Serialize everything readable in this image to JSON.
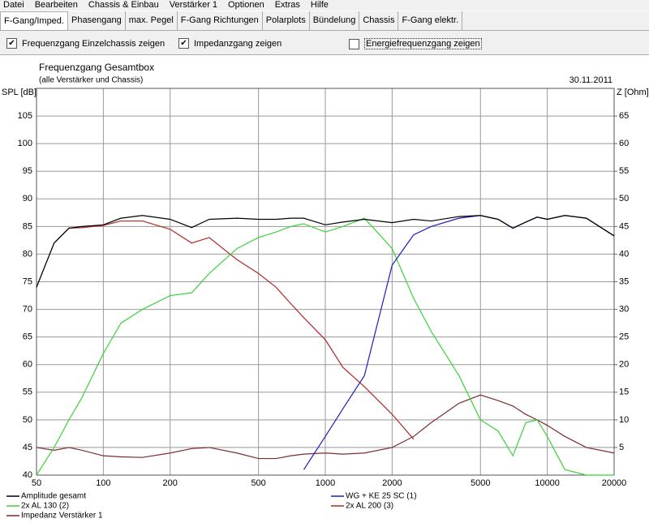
{
  "menu": [
    "Datei",
    "Bearbeiten",
    "Chassis & Einbau",
    "Verstärker 1",
    "Optionen",
    "Extras",
    "Hilfe"
  ],
  "tabs": [
    {
      "label": "F-Gang/Imped.",
      "active": true
    },
    {
      "label": "Phasengang",
      "active": false
    },
    {
      "label": "max. Pegel",
      "active": false
    },
    {
      "label": "F-Gang Richtungen",
      "active": false
    },
    {
      "label": "Polarplots",
      "active": false
    },
    {
      "label": "Bündelung",
      "active": false
    },
    {
      "label": "Chassis",
      "active": false
    },
    {
      "label": "F-Gang elektr.",
      "active": false
    }
  ],
  "options": [
    {
      "label": "Frequenzgang Einzelchassis zeigen",
      "checked": true
    },
    {
      "label": "Impedanzgang zeigen",
      "checked": true
    },
    {
      "label": "Energiefrequenzgang zeigen",
      "checked": false
    }
  ],
  "chart_data": {
    "type": "line",
    "title": "Frequenzgang Gesamtbox",
    "subtitle": "(alle Verstärker und Chassis)",
    "date": "30.11.2011",
    "ylabel": "SPL [dB]",
    "y2label": "Z [Ohm]",
    "xscale": "log",
    "grid": true,
    "xlim": [
      50,
      20000
    ],
    "xticks": [
      50,
      100,
      200,
      500,
      1000,
      2000,
      5000,
      10000,
      20000
    ],
    "ylim": [
      40,
      110
    ],
    "yticks": [
      40,
      45,
      50,
      55,
      60,
      65,
      70,
      75,
      80,
      85,
      90,
      95,
      100,
      105
    ],
    "y2lim": [
      0,
      70
    ],
    "y2ticks": [
      5,
      10,
      15,
      20,
      25,
      30,
      35,
      40,
      45,
      50,
      55,
      60,
      65
    ],
    "x": [
      50,
      60,
      70,
      80,
      100,
      120,
      150,
      200,
      250,
      300,
      400,
      500,
      600,
      700,
      800,
      1000,
      1200,
      1500,
      2000,
      2500,
      3000,
      4000,
      5000,
      6000,
      7000,
      8000,
      9000,
      10000,
      12000,
      15000,
      20000
    ],
    "series": [
      {
        "name": "Amplitude gesamt",
        "color": "#000000",
        "values": [
          74,
          82,
          84.7,
          85,
          85.3,
          86.5,
          87,
          86.3,
          84.8,
          86.3,
          86.5,
          86.3,
          86.3,
          86.5,
          86.5,
          85.3,
          85.8,
          86.3,
          85.7,
          86.3,
          86,
          86.8,
          87,
          86.3,
          84.7,
          85.8,
          86.7,
          86.3,
          87,
          86.5,
          83.3
        ]
      },
      {
        "name": "WG + KE 25 SC (1)",
        "color": "#1e1ebe",
        "values": [
          null,
          null,
          null,
          null,
          null,
          null,
          null,
          null,
          null,
          null,
          null,
          null,
          null,
          null,
          41,
          47,
          52,
          58,
          78,
          83.5,
          85,
          86.5,
          87,
          86.3,
          84.7,
          85.8,
          86.7,
          86.3,
          87,
          86.5,
          83.3
        ]
      },
      {
        "name": "2x AL 130 (2)",
        "color": "#3cd23c",
        "values": [
          40,
          45,
          50,
          54,
          62,
          67.5,
          70,
          72.5,
          73,
          76.5,
          81,
          83,
          84,
          85,
          85.5,
          84,
          85,
          86.5,
          81,
          72,
          66,
          58,
          50,
          48,
          43.5,
          49.5,
          50,
          47,
          41,
          40,
          40
        ]
      },
      {
        "name": "2x AL 200 (3)",
        "color": "#b02828",
        "values": [
          74,
          82,
          84.7,
          84.8,
          85.2,
          86,
          86,
          84.5,
          82,
          83,
          79,
          76.5,
          74,
          71,
          68.5,
          64.5,
          59.5,
          56,
          51,
          46.5,
          null,
          null,
          null,
          null,
          null,
          null,
          null,
          null,
          null,
          null,
          null
        ]
      },
      {
        "name": "Impedanz Verstärker 1",
        "color": "#7b2d2d",
        "axis": "y2",
        "values": [
          5,
          4.5,
          5,
          4.5,
          3.5,
          3.3,
          3.2,
          4,
          4.8,
          5,
          4,
          3,
          3,
          3.5,
          3.8,
          4,
          3.8,
          4,
          5,
          7,
          9.5,
          13,
          14.5,
          13.5,
          12.5,
          11,
          10,
          9,
          7,
          5,
          4
        ]
      }
    ]
  }
}
